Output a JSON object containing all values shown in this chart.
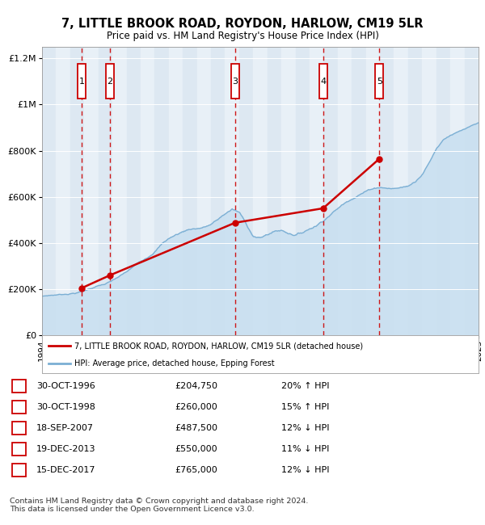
{
  "title": "7, LITTLE BROOK ROAD, ROYDON, HARLOW, CM19 5LR",
  "subtitle": "Price paid vs. HM Land Registry's House Price Index (HPI)",
  "legend_line1": "7, LITTLE BROOK ROAD, ROYDON, HARLOW, CM19 5LR (detached house)",
  "legend_line2": "HPI: Average price, detached house, Epping Forest",
  "footer": "Contains HM Land Registry data © Crown copyright and database right 2024.\nThis data is licensed under the Open Government Licence v3.0.",
  "sale_color": "#cc0000",
  "hpi_color": "#7bafd4",
  "hpi_fill_color": "#c8dff0",
  "ylim": [
    0,
    1250000
  ],
  "yticks": [
    0,
    200000,
    400000,
    600000,
    800000,
    1000000,
    1200000
  ],
  "ytick_labels": [
    "£0",
    "£200K",
    "£400K",
    "£600K",
    "£800K",
    "£1M",
    "£1.2M"
  ],
  "sales": [
    {
      "num": 1,
      "date_x": 1996.83,
      "price": 204750,
      "label": "30-OCT-1996",
      "pct": "20% ↑ HPI"
    },
    {
      "num": 2,
      "date_x": 1998.83,
      "price": 260000,
      "label": "30-OCT-1998",
      "pct": "15% ↑ HPI"
    },
    {
      "num": 3,
      "date_x": 2007.71,
      "price": 487500,
      "label": "18-SEP-2007",
      "pct": "12% ↓ HPI"
    },
    {
      "num": 4,
      "date_x": 2013.96,
      "price": 550000,
      "label": "19-DEC-2013",
      "pct": "11% ↓ HPI"
    },
    {
      "num": 5,
      "date_x": 2017.96,
      "price": 765000,
      "label": "15-DEC-2017",
      "pct": "12% ↓ HPI"
    }
  ],
  "xmin": 1994,
  "xmax": 2025,
  "hpi_points": [
    [
      1994.0,
      168000
    ],
    [
      1994.5,
      172000
    ],
    [
      1995.0,
      175000
    ],
    [
      1995.5,
      178000
    ],
    [
      1996.0,
      182000
    ],
    [
      1996.5,
      187000
    ],
    [
      1997.0,
      195000
    ],
    [
      1997.5,
      208000
    ],
    [
      1998.0,
      218000
    ],
    [
      1998.5,
      225000
    ],
    [
      1999.0,
      237000
    ],
    [
      1999.5,
      255000
    ],
    [
      2000.0,
      272000
    ],
    [
      2000.5,
      295000
    ],
    [
      2001.0,
      318000
    ],
    [
      2001.5,
      340000
    ],
    [
      2002.0,
      368000
    ],
    [
      2002.5,
      400000
    ],
    [
      2003.0,
      425000
    ],
    [
      2003.5,
      440000
    ],
    [
      2004.0,
      455000
    ],
    [
      2004.5,
      468000
    ],
    [
      2005.0,
      472000
    ],
    [
      2005.5,
      478000
    ],
    [
      2006.0,
      490000
    ],
    [
      2006.5,
      510000
    ],
    [
      2007.0,
      535000
    ],
    [
      2007.5,
      555000
    ],
    [
      2008.0,
      540000
    ],
    [
      2008.5,
      490000
    ],
    [
      2009.0,
      440000
    ],
    [
      2009.5,
      430000
    ],
    [
      2010.0,
      445000
    ],
    [
      2010.5,
      460000
    ],
    [
      2011.0,
      465000
    ],
    [
      2011.5,
      455000
    ],
    [
      2012.0,
      450000
    ],
    [
      2012.5,
      460000
    ],
    [
      2013.0,
      478000
    ],
    [
      2013.5,
      495000
    ],
    [
      2014.0,
      520000
    ],
    [
      2014.5,
      548000
    ],
    [
      2015.0,
      572000
    ],
    [
      2015.5,
      595000
    ],
    [
      2016.0,
      618000
    ],
    [
      2016.5,
      638000
    ],
    [
      2017.0,
      652000
    ],
    [
      2017.5,
      665000
    ],
    [
      2018.0,
      672000
    ],
    [
      2018.5,
      668000
    ],
    [
      2019.0,
      665000
    ],
    [
      2019.5,
      670000
    ],
    [
      2020.0,
      675000
    ],
    [
      2020.5,
      695000
    ],
    [
      2021.0,
      730000
    ],
    [
      2021.5,
      780000
    ],
    [
      2022.0,
      840000
    ],
    [
      2022.5,
      880000
    ],
    [
      2023.0,
      900000
    ],
    [
      2023.5,
      910000
    ],
    [
      2024.0,
      920000
    ],
    [
      2024.5,
      930000
    ],
    [
      2025.0,
      940000
    ]
  ]
}
